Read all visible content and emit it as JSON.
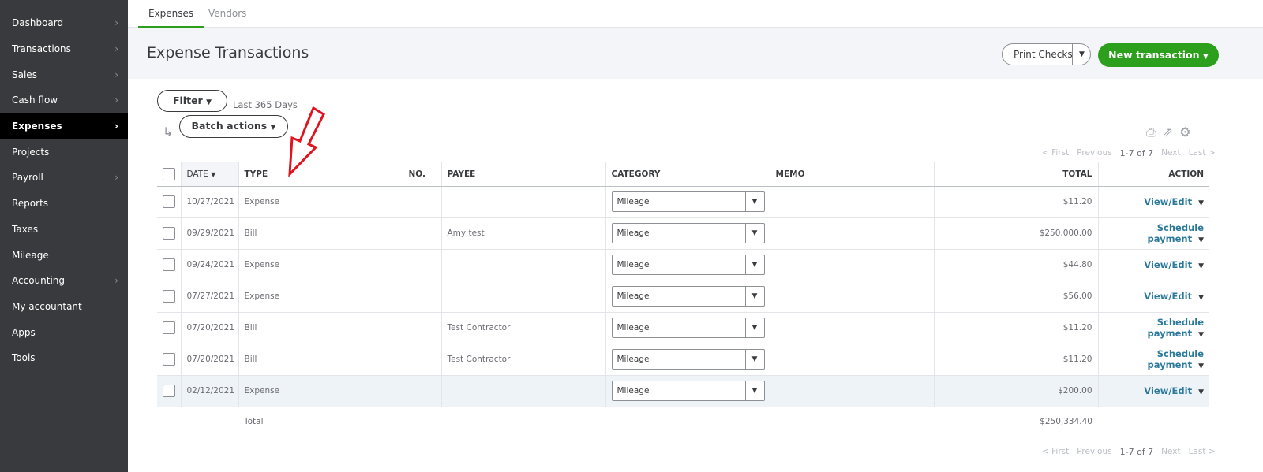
{
  "sidebar": {
    "items": [
      {
        "label": "Dashboard",
        "chevron": true
      },
      {
        "label": "Transactions",
        "chevron": true
      },
      {
        "label": "Sales",
        "chevron": true
      },
      {
        "label": "Cash flow",
        "chevron": true
      },
      {
        "label": "Expenses",
        "chevron": true,
        "active": true
      },
      {
        "label": "Projects",
        "chevron": false
      },
      {
        "label": "Payroll",
        "chevron": true
      },
      {
        "label": "Reports",
        "chevron": false
      },
      {
        "label": "Taxes",
        "chevron": false
      },
      {
        "label": "Mileage",
        "chevron": false
      },
      {
        "label": "Accounting",
        "chevron": true
      },
      {
        "label": "My accountant",
        "chevron": false
      },
      {
        "label": "Apps",
        "chevron": false
      },
      {
        "label": "Tools",
        "chevron": false
      }
    ]
  },
  "tabs": {
    "expenses": "Expenses",
    "vendors": "Vendors"
  },
  "header": {
    "title": "Expense Transactions",
    "print_checks": "Print Checks",
    "new_transaction": "New transaction"
  },
  "toolbar": {
    "filter": "Filter",
    "range": "Last 365 Days",
    "batch_actions": "Batch actions"
  },
  "pager": {
    "first": "< First",
    "previous": "Previous",
    "current": "1-7 of 7",
    "next": "Next",
    "last": "Last >"
  },
  "table": {
    "headers": {
      "date": "DATE",
      "type": "TYPE",
      "no": "NO.",
      "payee": "PAYEE",
      "category": "CATEGORY",
      "memo": "MEMO",
      "total": "TOTAL",
      "action": "ACTION"
    },
    "rows": [
      {
        "date": "10/27/2021",
        "type": "Expense",
        "no": "",
        "payee": "",
        "category": "Mileage",
        "memo": "",
        "total": "$11.20",
        "action": "View/Edit"
      },
      {
        "date": "09/29/2021",
        "type": "Bill",
        "no": "",
        "payee": "Amy test",
        "category": "Mileage",
        "memo": "",
        "total": "$250,000.00",
        "action": "Schedule payment"
      },
      {
        "date": "09/24/2021",
        "type": "Expense",
        "no": "",
        "payee": "",
        "category": "Mileage",
        "memo": "",
        "total": "$44.80",
        "action": "View/Edit"
      },
      {
        "date": "07/27/2021",
        "type": "Expense",
        "no": "",
        "payee": "",
        "category": "Mileage",
        "memo": "",
        "total": "$56.00",
        "action": "View/Edit"
      },
      {
        "date": "07/20/2021",
        "type": "Bill",
        "no": "",
        "payee": "Test Contractor",
        "category": "Mileage",
        "memo": "",
        "total": "$11.20",
        "action": "Schedule payment"
      },
      {
        "date": "07/20/2021",
        "type": "Bill",
        "no": "",
        "payee": "Test Contractor",
        "category": "Mileage",
        "memo": "",
        "total": "$11.20",
        "action": "Schedule payment"
      },
      {
        "date": "02/12/2021",
        "type": "Expense",
        "no": "",
        "payee": "",
        "category": "Mileage",
        "memo": "",
        "total": "$200.00",
        "action": "View/Edit"
      }
    ],
    "total_label": "Total",
    "total_value": "$250,334.40"
  },
  "colors": {
    "accent": "#2ca01c",
    "sidebar": "#393a3d",
    "annotation_arrow": "#e0141e"
  }
}
